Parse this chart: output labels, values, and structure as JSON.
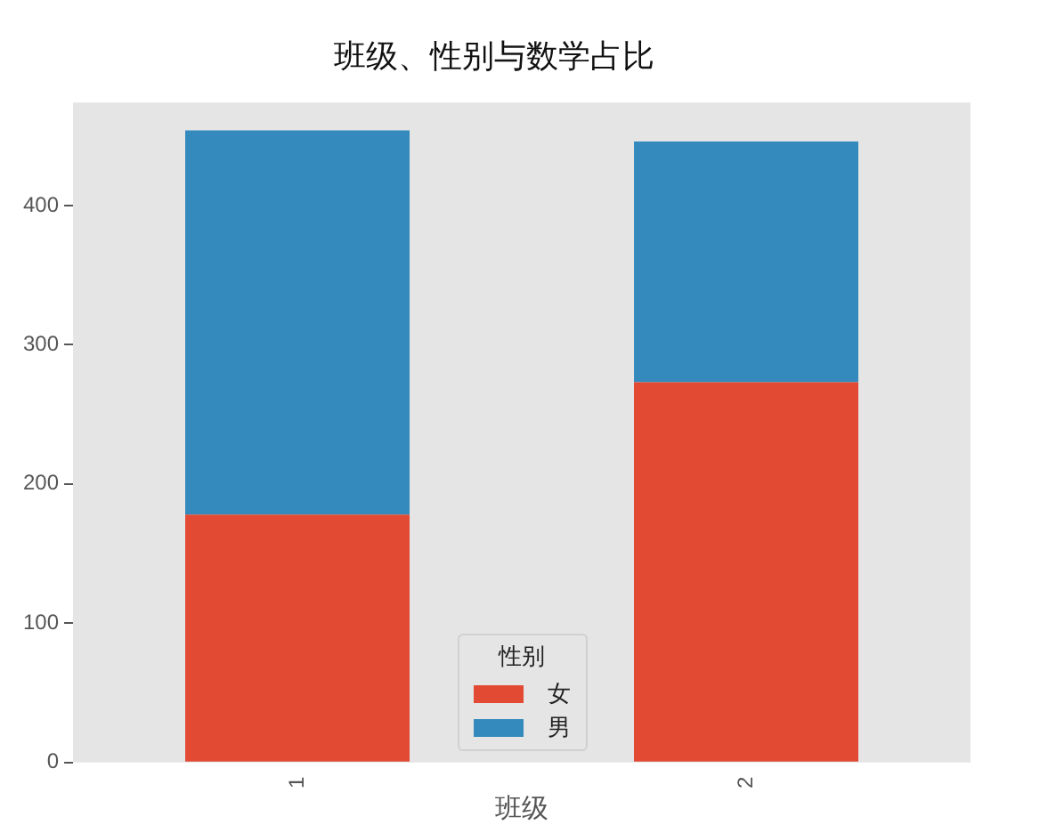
{
  "chart_data": {
    "type": "bar",
    "title": "班级、性别与数学占比",
    "xlabel": "班级",
    "categories": [
      "1",
      "2"
    ],
    "stacked": true,
    "series": [
      {
        "name": "女",
        "color": "#e24a33",
        "values": [
          178,
          273
        ]
      },
      {
        "name": "男",
        "color": "#348abd",
        "values": [
          276,
          173
        ]
      }
    ],
    "ylim": [
      0,
      474
    ],
    "yticks": [
      0,
      100,
      200,
      300,
      400
    ],
    "grid": false,
    "legend": "bottom",
    "legend_title": "性别"
  }
}
